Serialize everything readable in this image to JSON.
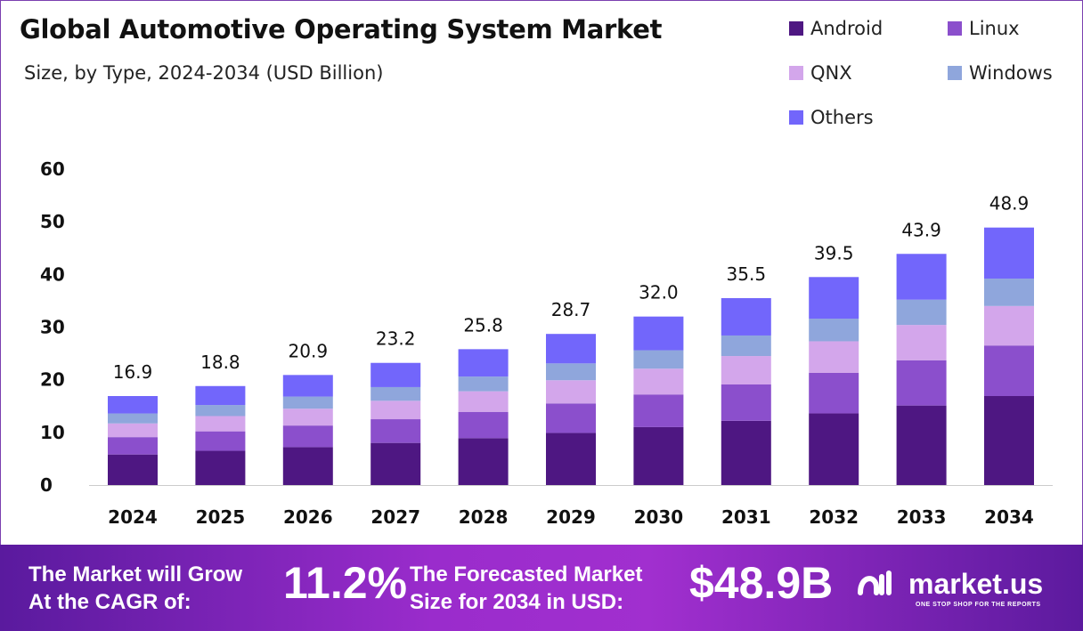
{
  "chart_data": {
    "type": "bar",
    "stacked": true,
    "title": "Global Automotive Operating System Market",
    "subtitle": "Size, by Type, 2024-2034 (USD Billion)",
    "xlabel": "",
    "ylabel": "",
    "ylim": [
      0,
      60
    ],
    "yticks": [
      "0",
      "10",
      "20",
      "30",
      "40",
      "50",
      "60"
    ],
    "legend_position": "top-right",
    "categories": [
      "2024",
      "2025",
      "2026",
      "2027",
      "2028",
      "2029",
      "2030",
      "2031",
      "2032",
      "2033",
      "2034"
    ],
    "totals": [
      "16.9",
      "18.8",
      "20.9",
      "23.2",
      "25.8",
      "28.7",
      "32.0",
      "35.5",
      "39.5",
      "43.9",
      "48.9"
    ],
    "series": [
      {
        "name": "Android",
        "color": "#4e1782",
        "values": [
          5.8,
          6.5,
          7.2,
          8.0,
          8.9,
          9.9,
          11.0,
          12.2,
          13.6,
          15.1,
          16.9
        ]
      },
      {
        "name": "Linux",
        "color": "#8b4fcc",
        "values": [
          3.3,
          3.7,
          4.1,
          4.5,
          5.0,
          5.6,
          6.2,
          6.9,
          7.7,
          8.6,
          9.6
        ]
      },
      {
        "name": "QNX",
        "color": "#d3a6eb",
        "values": [
          2.6,
          2.9,
          3.2,
          3.5,
          3.9,
          4.4,
          4.9,
          5.4,
          6.0,
          6.7,
          7.5
        ]
      },
      {
        "name": "Windows",
        "color": "#8fa6dc",
        "values": [
          1.9,
          2.1,
          2.3,
          2.6,
          2.8,
          3.2,
          3.5,
          3.9,
          4.3,
          4.8,
          5.2
        ]
      },
      {
        "name": "Others",
        "color": "#7266fb",
        "values": [
          3.3,
          3.6,
          4.1,
          4.6,
          5.2,
          5.6,
          6.4,
          7.1,
          7.9,
          8.7,
          9.7
        ]
      }
    ]
  },
  "footer": {
    "cagr_text_1": "The Market will Grow",
    "cagr_text_2": "At the CAGR of:",
    "cagr_value": "11.2%",
    "forecast_text_1": "The Forecasted Market",
    "forecast_text_2": "Size for 2034 in USD:",
    "forecast_value": "$48.9B",
    "brand": "market.us",
    "tagline": "ONE STOP SHOP FOR THE REPORTS"
  }
}
